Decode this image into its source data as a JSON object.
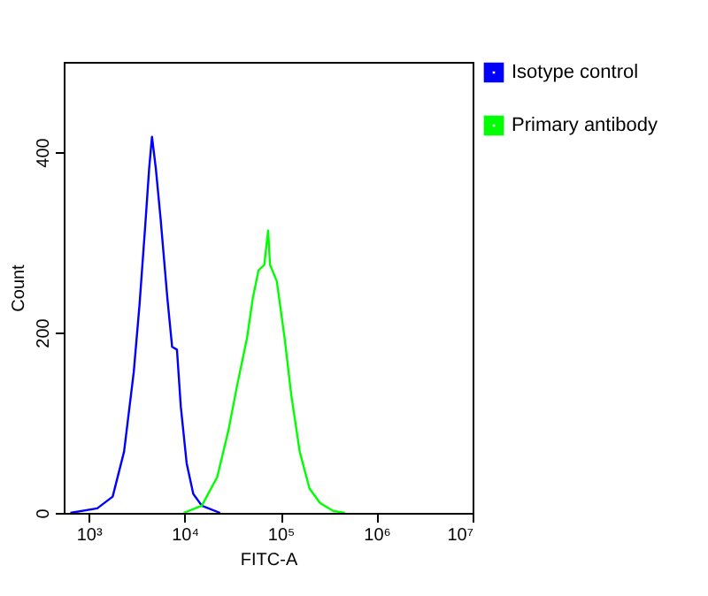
{
  "chart_data": {
    "type": "line",
    "xlabel": "FITC-A",
    "ylabel": "Count",
    "log": "x",
    "xlim": [
      550,
      10000000
    ],
    "ylim": [
      0,
      500
    ],
    "xticks": [
      {
        "value": 1000,
        "label": "10³"
      },
      {
        "value": 10000,
        "label": "10⁴"
      },
      {
        "value": 100000,
        "label": "10⁵"
      },
      {
        "value": 1000000,
        "label": "10⁶"
      },
      {
        "value": 10000000,
        "label": "10⁷"
      }
    ],
    "yticks": [
      0,
      200,
      400
    ],
    "grid": false,
    "legend": "right",
    "marker": "none",
    "line_style": "solid",
    "series": [
      {
        "name": "Isotype control",
        "color": "#0000ff",
        "x": [
          646,
          1230,
          1780,
          2340,
          2950,
          3390,
          3890,
          4270,
          4570,
          5010,
          5620,
          6610,
          7410,
          8320,
          9120,
          10500,
          12300,
          15100,
          23400
        ],
        "values": [
          0,
          5,
          18,
          68,
          156,
          231,
          319,
          382,
          417,
          382,
          326,
          238,
          184,
          181,
          118,
          55,
          21,
          8,
          0
        ]
      },
      {
        "name": "Primary antibody",
        "color": "#00ff00",
        "x": [
          9770,
          15100,
          21900,
          28800,
          35500,
          44700,
          51300,
          58900,
          67600,
          74100,
          77600,
          91200,
          110000,
          129000,
          158000,
          200000,
          257000,
          355000,
          468000
        ],
        "values": [
          0,
          8,
          40,
          93,
          143,
          194,
          238,
          269,
          275,
          313,
          275,
          257,
          194,
          131,
          68,
          27,
          11,
          2,
          0
        ]
      }
    ]
  }
}
